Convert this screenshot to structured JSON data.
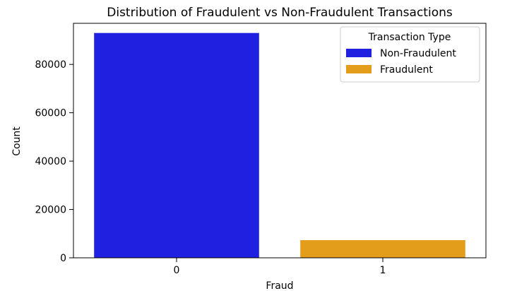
{
  "chart_data": {
    "type": "bar",
    "title": "Distribution of Fraudulent vs Non-Fraudulent Transactions",
    "xlabel": "Fraud",
    "ylabel": "Count",
    "categories": [
      "0",
      "1"
    ],
    "values": [
      93000,
      7300
    ],
    "bar_colors": [
      "#2020e0",
      "#e39d1b"
    ],
    "ylim": [
      0,
      97000
    ],
    "yticks": [
      0,
      20000,
      40000,
      60000,
      80000
    ],
    "ytick_labels": [
      "0",
      "20000",
      "40000",
      "60000",
      "80000"
    ],
    "grid": false,
    "legend": {
      "title": "Transaction Type",
      "placement": "top-right",
      "entries": [
        {
          "label": "Non-Fraudulent",
          "color": "#2020e0"
        },
        {
          "label": "Fraudulent",
          "color": "#e39d1b"
        }
      ]
    }
  }
}
